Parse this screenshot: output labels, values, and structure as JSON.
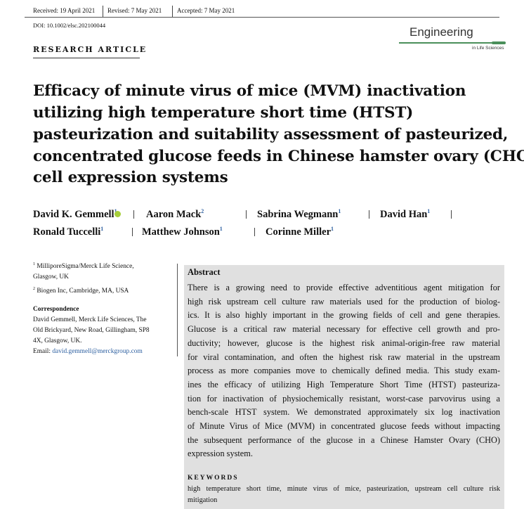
{
  "header": {
    "received": "Received: 19 April 2021",
    "revised": "Revised: 7 May 2021",
    "accepted": "Accepted: 7 May 2021",
    "doi": "DOI: 10.1002/elsc.202100044"
  },
  "journal": {
    "name": "Engineering",
    "sub": "in Life Sciences",
    "brand_color": "#4a8f5a"
  },
  "article_type": "RESEARCH ARTICLE",
  "title_lines": [
    "Efficacy of minute virus of mice (MVM) inactivation",
    "utilizing high temperature short time (HTST)",
    "pasteurization and suitability assessment of pasteurized,",
    "concentrated glucose feeds in Chinese hamster ovary (CHO)",
    "cell expression systems"
  ],
  "authors": [
    {
      "name": "David K. Gemmell",
      "sup": "1",
      "orcid": true
    },
    {
      "name": "Aaron Mack",
      "sup": "2"
    },
    {
      "name": "Sabrina Wegmann",
      "sup": "1"
    },
    {
      "name": "David Han",
      "sup": "1"
    },
    {
      "name": "Ronald Tuccelli",
      "sup": "1"
    },
    {
      "name": "Matthew Johnson",
      "sup": "1"
    },
    {
      "name": "Corinne Miller",
      "sup": "1"
    }
  ],
  "affiliations": [
    {
      "sup": "1",
      "lines": [
        "MilliporeSigma/Merck Life Science,",
        "Glasgow, UK"
      ]
    },
    {
      "sup": "2",
      "lines": [
        "Biogen Inc, Cambridge, MA, USA"
      ]
    }
  ],
  "correspondence": {
    "heading": "Correspondence",
    "lines": [
      "David Gemmell, Merck Life Sciences, The",
      "Old Brickyard, New Road, Gillingham, SP8",
      "4X, Glasgow, UK."
    ],
    "email_label": "Email: ",
    "email": "david.gemmell@merckgroup.com",
    "link_color": "#2a5d9f"
  },
  "abstract": {
    "heading": "Abstract",
    "lines": [
      "There is a growing need to provide effective adventitious agent mitigation for",
      "high risk upstream cell culture raw materials used for the production of biolog-",
      "ics. It is also highly important in the growing fields of cell and gene therapies.",
      "Glucose is a critical raw material necessary for effective cell growth and pro-",
      "ductivity; however, glucose is the highest risk animal-origin-free raw material",
      "for viral contamination, and often the highest risk raw material in the upstream",
      "process as more companies move to chemically defined media. This study exam-",
      "ines the efficacy of utilizing High Temperature Short Time (HTST) pasteuriza-",
      "tion for inactivation of physiochemically resistant, worst-case parvovirus using a",
      "bench-scale HTST system. We demonstrated approximately six log inactivation",
      "of Minute Virus of Mice (MVM) in concentrated glucose feeds without impacting",
      "the subsequent performance of the glucose in a Chinese Hamster Ovary (CHO)",
      "expression system."
    ],
    "keywords_heading": "KEYWORDS",
    "keywords_lines": [
      "high temperature short time, minute virus of mice, pasteurization, upstream cell culture risk",
      "mitigation"
    ]
  }
}
